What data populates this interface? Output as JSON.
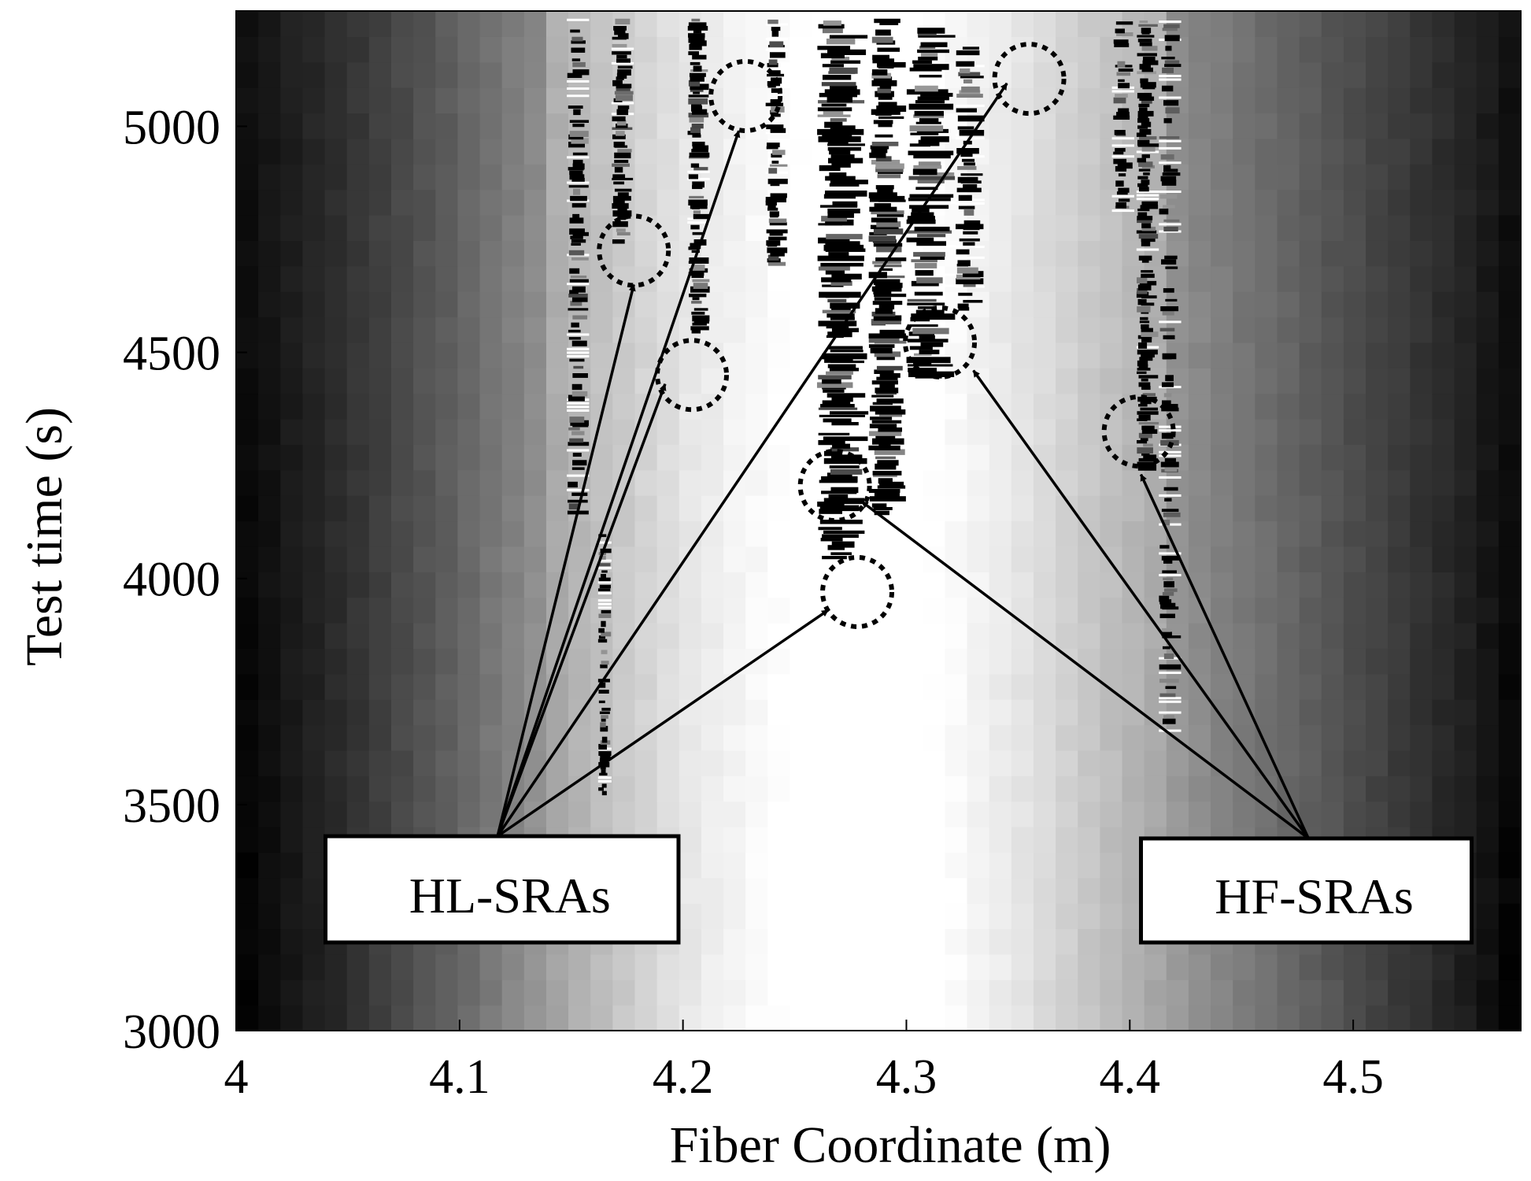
{
  "chart_data": {
    "type": "heatmap",
    "colormap": "grayscale",
    "xlabel": "Fiber Coordinate (m)",
    "ylabel": "Test time (s)",
    "xlim": [
      4.0,
      4.575
    ],
    "ylim": [
      3000,
      5255
    ],
    "xticks": [
      4,
      4.1,
      4.2,
      4.3,
      4.4,
      4.5
    ],
    "xtick_labels": [
      "4",
      "4.1",
      "4.2",
      "4.3",
      "4.4",
      "4.5"
    ],
    "yticks": [
      3000,
      3500,
      4000,
      4500,
      5000
    ],
    "ytick_labels": [
      "3000",
      "3500",
      "4000",
      "4500",
      "5000"
    ],
    "grid": false,
    "background_profile": {
      "x": [
        4.0,
        4.05,
        4.1,
        4.15,
        4.2,
        4.25,
        4.28,
        4.31,
        4.35,
        4.4,
        4.45,
        4.5,
        4.55,
        4.575
      ],
      "intensity": [
        0.05,
        0.2,
        0.38,
        0.6,
        0.78,
        0.88,
        0.92,
        0.88,
        0.78,
        0.62,
        0.45,
        0.3,
        0.15,
        0.05
      ]
    },
    "dark_bands": [
      {
        "x": [
          4.148,
          4.158
        ],
        "ymin": 4150,
        "ymax": 5240,
        "density": 0.55
      },
      {
        "x": [
          4.162,
          4.168
        ],
        "ymin": 3530,
        "ymax": 4100,
        "density": 0.7
      },
      {
        "x": [
          4.168,
          4.178
        ],
        "ymin": 4750,
        "ymax": 5240,
        "density": 0.75
      },
      {
        "x": [
          4.202,
          4.212
        ],
        "ymin": 4550,
        "ymax": 5240,
        "density": 0.8
      },
      {
        "x": [
          4.237,
          4.247
        ],
        "ymin": 4700,
        "ymax": 5240,
        "density": 0.7
      },
      {
        "x": [
          4.26,
          4.283
        ],
        "ymin": 4050,
        "ymax": 5240,
        "density": 0.85
      },
      {
        "x": [
          4.283,
          4.3
        ],
        "ymin": 4150,
        "ymax": 5240,
        "density": 0.85
      },
      {
        "x": [
          4.3,
          4.322
        ],
        "ymin": 4450,
        "ymax": 5240,
        "density": 0.8
      },
      {
        "x": [
          4.322,
          4.335
        ],
        "ymin": 4600,
        "ymax": 5200,
        "density": 0.6
      },
      {
        "x": [
          4.392,
          4.402
        ],
        "ymin": 4800,
        "ymax": 5240,
        "density": 0.5
      },
      {
        "x": [
          4.403,
          4.413
        ],
        "ymin": 4250,
        "ymax": 5240,
        "density": 0.85
      },
      {
        "x": [
          4.413,
          4.423
        ],
        "ymin": 3650,
        "ymax": 5240,
        "density": 0.4
      }
    ],
    "annotations": [
      {
        "label": "HL-SRAs",
        "box_x": [
          4.04,
          4.198
        ],
        "box_y": [
          3195,
          3430
        ],
        "arrow_origin": [
          4.117,
          3430
        ],
        "targets": [
          {
            "x": 4.225,
            "y": 4990
          },
          {
            "x": 4.178,
            "y": 4650
          },
          {
            "x": 4.192,
            "y": 4430
          },
          {
            "x": 4.345,
            "y": 5095
          },
          {
            "x": 4.265,
            "y": 3930
          }
        ]
      },
      {
        "label": "HF-SRAs",
        "box_x": [
          4.405,
          4.553
        ],
        "box_y": [
          3195,
          3425
        ],
        "arrow_origin": [
          4.48,
          3425
        ],
        "targets": [
          {
            "x": 4.33,
            "y": 4460
          },
          {
            "x": 4.28,
            "y": 4170
          },
          {
            "x": 4.405,
            "y": 4230
          }
        ]
      }
    ],
    "circles": [
      {
        "x": 4.228,
        "y": 5067
      },
      {
        "x": 4.355,
        "y": 5105
      },
      {
        "x": 4.178,
        "y": 4725
      },
      {
        "x": 4.204,
        "y": 4450
      },
      {
        "x": 4.315,
        "y": 4522
      },
      {
        "x": 4.404,
        "y": 4325
      },
      {
        "x": 4.268,
        "y": 4205
      },
      {
        "x": 4.278,
        "y": 3970
      }
    ]
  }
}
